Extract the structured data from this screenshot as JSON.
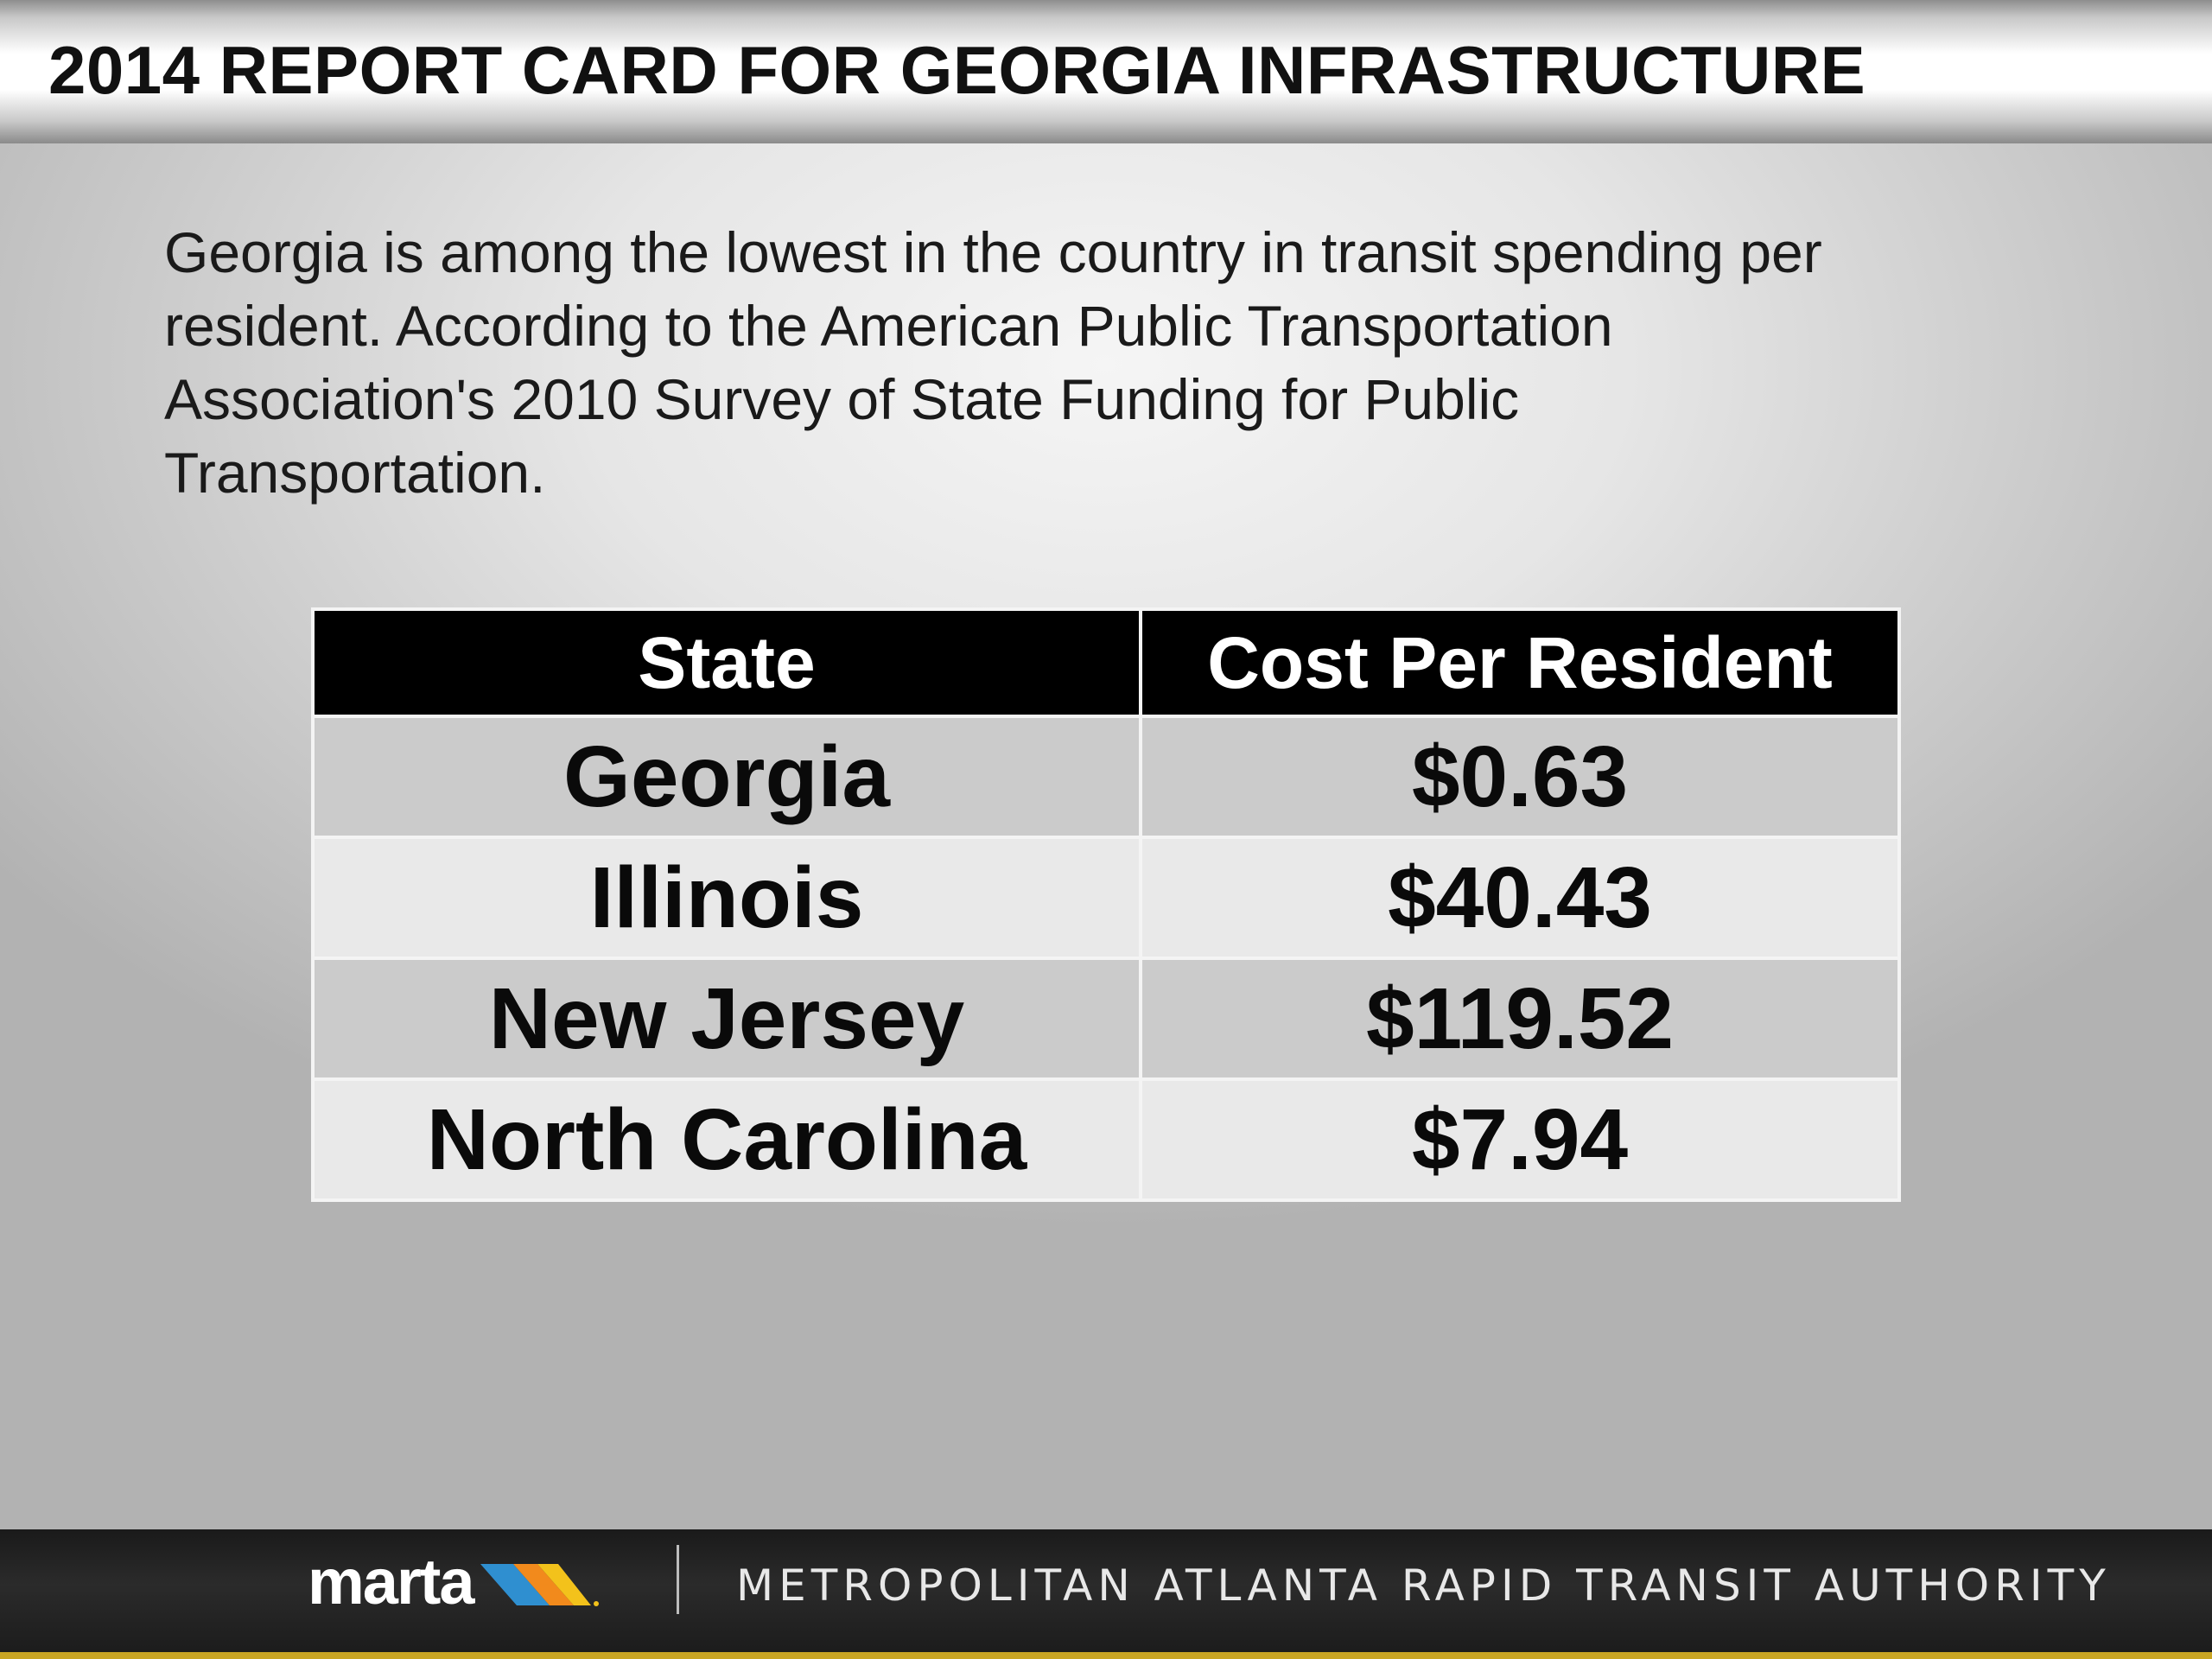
{
  "slide": {
    "title": "2014 REPORT CARD FOR GEORGIA INFRASTRUCTURE",
    "intro_lines": [
      "Georgia is among the lowest in the country in transit spending per",
      "resident. According to the American Public Transportation",
      "Association's 2010 Survey of State Funding for Public",
      "Transportation."
    ]
  },
  "table": {
    "headers": [
      "State",
      "Cost Per Resident"
    ],
    "rows": [
      {
        "state": "Georgia",
        "cost": "$0.63"
      },
      {
        "state": "Illinois",
        "cost": "$40.43"
      },
      {
        "state": "New Jersey",
        "cost": "$119.52"
      },
      {
        "state": "North Carolina",
        "cost": "$7.94"
      }
    ]
  },
  "footer": {
    "logo_text": "marta",
    "authority": "METROPOLITAN ATLANTA RAPID TRANSIT AUTHORITY",
    "colors": {
      "logo_stripe_1": "#2f8fd0",
      "logo_stripe_2": "#f28a1c",
      "logo_stripe_3": "#f3c21b",
      "gold_bar": "#c9a524"
    }
  }
}
